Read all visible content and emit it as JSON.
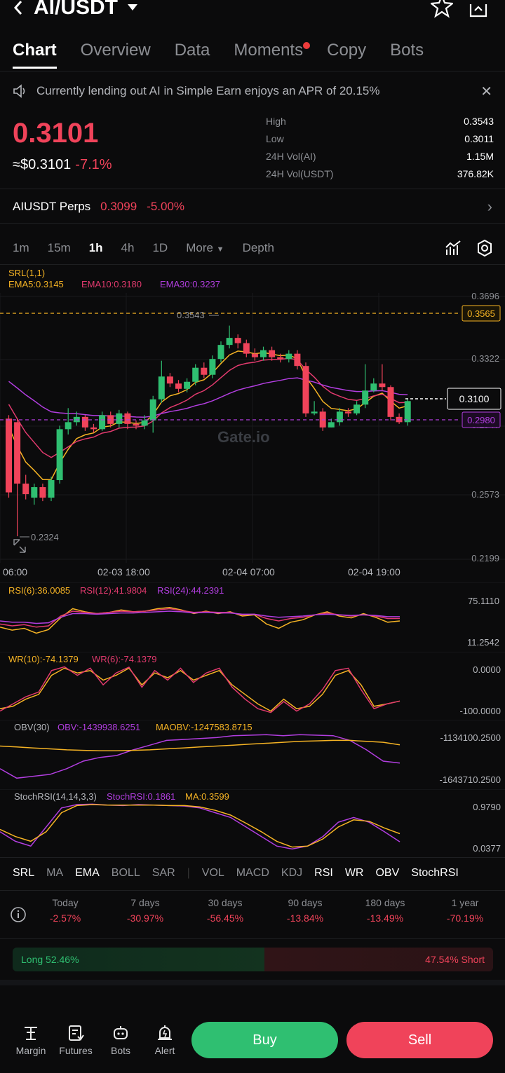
{
  "header": {
    "pair": "AI/USDT",
    "back_icon": "back-arrow-icon"
  },
  "tabs": [
    {
      "label": "Chart",
      "active": true
    },
    {
      "label": "Overview"
    },
    {
      "label": "Data"
    },
    {
      "label": "Moments",
      "dot": true
    },
    {
      "label": "Copy"
    },
    {
      "label": "Bots"
    }
  ],
  "notice": {
    "text": "Currently lending out AI in Simple Earn enjoys an APR of 20.15%"
  },
  "ticker": {
    "price": "0.3101",
    "usd_price": "≈$0.3101",
    "change": "-7.1%",
    "stats": [
      {
        "label": "High",
        "value": "0.3543"
      },
      {
        "label": "Low",
        "value": "0.3011"
      },
      {
        "label": "24H Vol(AI)",
        "value": "1.15M"
      },
      {
        "label": "24H Vol(USDT)",
        "value": "376.82K"
      }
    ]
  },
  "perps": {
    "label": "AIUSDT Perps",
    "price": "0.3099",
    "change": "-5.00%"
  },
  "timeframes": [
    "1m",
    "15m",
    "1h",
    "4h",
    "1D",
    "More",
    "Depth"
  ],
  "selected_timeframe": "1h",
  "chart": {
    "srl_label": "SRL(1,1)",
    "ema5": "EMA5:0.3145",
    "ema10": "EMA10:0.3180",
    "ema30": "EMA30:0.3237",
    "y_ticks": [
      "0.3696",
      "0.3322",
      "0.2947",
      "0.2573",
      "0.2199"
    ],
    "x_ticks": [
      "06:00",
      "02-03 18:00",
      "02-04 07:00",
      "02-04 19:00"
    ],
    "marker_high": "0.3565",
    "marker_current": "0.3100",
    "marker_low": "0.2980",
    "annot_high": "0.3543",
    "annot_low": "0.2324",
    "watermark": "Gate.io"
  },
  "rsi": {
    "r6": "RSI(6):36.0085",
    "r12": "RSI(12):41.9804",
    "r24": "RSI(24):44.2391",
    "top": "75.1110",
    "bottom": "11.2542"
  },
  "wr": {
    "w10": "WR(10):-74.1379",
    "w6": "WR(6):-74.1379",
    "top": "0.0000",
    "bottom": "-100.0000"
  },
  "obv": {
    "label": "OBV(30)",
    "obv": "OBV:-1439938.6251",
    "maobv": "MAOBV:-1247583.8715",
    "top": "-1134100.2500",
    "bottom": "-1643710.2500"
  },
  "stoch": {
    "label": "StochRSI(14,14,3,3)",
    "srsi": "StochRSI:0.1861",
    "ma": "MA:0.3599",
    "top": "0.9790",
    "bottom": "0.0377"
  },
  "indicator_tabs": [
    "SRL",
    "MA",
    "EMA",
    "BOLL",
    "SAR",
    "VOL",
    "MACD",
    "KDJ",
    "RSI",
    "WR",
    "OBV",
    "StochRSI"
  ],
  "performance": [
    {
      "label": "Today",
      "value": "-2.57%"
    },
    {
      "label": "7 days",
      "value": "-30.97%"
    },
    {
      "label": "30 days",
      "value": "-56.45%"
    },
    {
      "label": "90 days",
      "value": "-13.84%"
    },
    {
      "label": "180 days",
      "value": "-13.49%"
    },
    {
      "label": "1 year",
      "value": "-70.19%"
    }
  ],
  "long_short": {
    "long": "Long 52.46%",
    "short": "47.54% Short",
    "long_pct": 52.46
  },
  "nav": [
    {
      "label": "Margin",
      "icon": "margin-icon"
    },
    {
      "label": "Futures",
      "icon": "futures-icon"
    },
    {
      "label": "Bots",
      "icon": "bots-icon"
    },
    {
      "label": "Alert",
      "icon": "alert-icon"
    }
  ],
  "actions": {
    "buy": "Buy",
    "sell": "Sell"
  },
  "colors": {
    "up": "#2fbf71",
    "down": "#f0435a",
    "ema5": "#f5b324",
    "ema10": "#e23a6e",
    "ema30": "#b23ee0"
  }
}
